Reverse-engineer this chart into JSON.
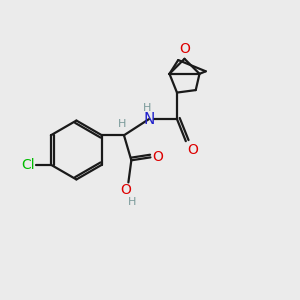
{
  "bg_color": "#ebebeb",
  "bond_color": "#1a1a1a",
  "cl_color": "#00bb00",
  "n_color": "#2222cc",
  "o_color": "#dd0000",
  "h_color": "#7a9a9a",
  "lw": 1.6,
  "fs": 10,
  "sfs": 8,
  "xlim": [
    0,
    10
  ],
  "ylim": [
    0,
    10
  ]
}
